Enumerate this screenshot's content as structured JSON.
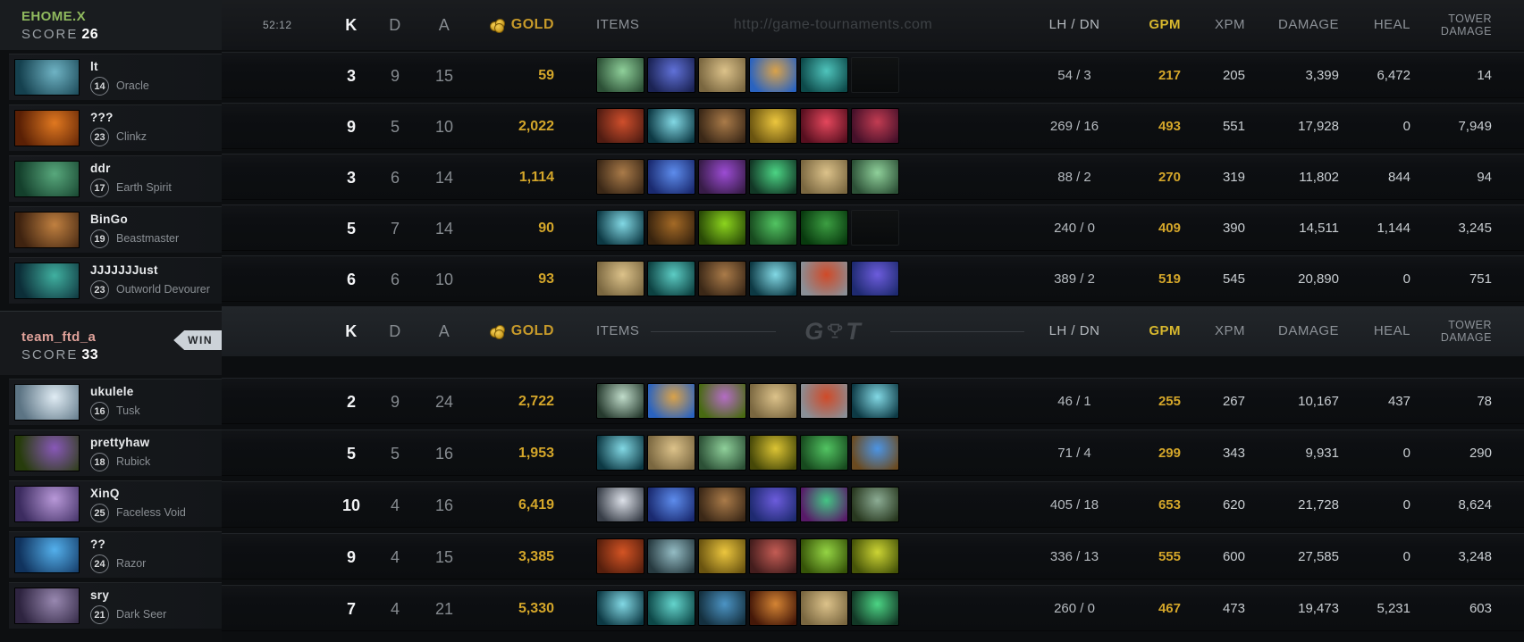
{
  "header": {
    "time": "52:12",
    "watermark": "http://game-tournaments.com",
    "columns": {
      "k": "K",
      "d": "D",
      "a": "A",
      "gold": "GOLD",
      "items": "ITEMS",
      "lh_dn": "LH / DN",
      "gpm": "GPM",
      "xpm": "XPM",
      "damage": "DAMAGE",
      "heal": "HEAL",
      "tower_line1": "TOWER",
      "tower_line2": "DAMAGE"
    },
    "gold_color": "#c79a2a",
    "gpm_color": "#d4a62a"
  },
  "teams": [
    {
      "name": "EHOME.X",
      "color": "#90ba5e",
      "score_label": "SCORE",
      "score": "26",
      "win": false,
      "players": [
        {
          "name": "lt",
          "level": "14",
          "hero": "Oracle",
          "portrait": [
            "#15414f",
            "#6fb3c4"
          ]
        },
        {
          "name": "???",
          "level": "23",
          "hero": "Clinkz",
          "portrait": [
            "#5a2005",
            "#e07820"
          ]
        },
        {
          "name": "ddr",
          "level": "17",
          "hero": "Earth Spirit",
          "portrait": [
            "#14402c",
            "#58a87c"
          ]
        },
        {
          "name": "BinGo",
          "level": "19",
          "hero": "Beastmaster",
          "portrait": [
            "#3f2310",
            "#c08040"
          ]
        },
        {
          "name": "JJJJJJJust",
          "level": "23",
          "hero": "Outworld Devourer",
          "portrait": [
            "#0c2e38",
            "#40b0a0"
          ]
        }
      ],
      "rows": [
        {
          "k": "3",
          "d": "9",
          "a": "15",
          "gold": "59",
          "lh": "54",
          "dn": "3",
          "gpm": "217",
          "xpm": "205",
          "damage": "3,399",
          "heal": "6,472",
          "tower": "14",
          "items": [
            [
              "oblivion-staff",
              "#2c5036",
              "#8fd09a"
            ],
            [
              "blue-cloak",
              "#1b2354",
              "#6071d8"
            ],
            [
              "tp-scroll",
              "#7a6740",
              "#dcc28a"
            ],
            [
              "blue-jar",
              "#2a63c0",
              "#d9a24a"
            ],
            [
              "teal-wave",
              "#0d4a4a",
              "#4fc4bc"
            ],
            null
          ]
        },
        {
          "k": "9",
          "d": "5",
          "a": "10",
          "gold": "2,022",
          "lh": "269",
          "dn": "16",
          "gpm": "493",
          "xpm": "551",
          "damage": "17,928",
          "heal": "0",
          "tower": "7,949",
          "items": [
            [
              "crossbow",
              "#511c12",
              "#cf4f2c"
            ],
            [
              "teal-blade",
              "#0d3944",
              "#82d8e4"
            ],
            [
              "boots",
              "#3b2817",
              "#aa7b49"
            ],
            [
              "gold-bird",
              "#6a5410",
              "#ecc63e"
            ],
            [
              "red-crystal",
              "#570f1f",
              "#e4475c"
            ],
            [
              "red-whip",
              "#451029",
              "#c23c52"
            ]
          ]
        },
        {
          "k": "3",
          "d": "6",
          "a": "14",
          "gold": "1,114",
          "lh": "88",
          "dn": "2",
          "gpm": "270",
          "xpm": "319",
          "damage": "11,802",
          "heal": "844",
          "tower": "94",
          "items": [
            [
              "boots",
              "#3b2817",
              "#aa7b49"
            ],
            [
              "blue-dagger",
              "#1a2a70",
              "#5d8cec"
            ],
            [
              "purple-hood",
              "#381c48",
              "#9c4cd4"
            ],
            [
              "green-gem",
              "#123826",
              "#4cd484"
            ],
            [
              "tp-scroll",
              "#7a6740",
              "#dcc28a"
            ],
            [
              "oblivion-staff",
              "#2c5036",
              "#8fd09a"
            ]
          ]
        },
        {
          "k": "5",
          "d": "7",
          "a": "14",
          "gold": "90",
          "lh": "240",
          "dn": "0",
          "gpm": "409",
          "xpm": "390",
          "damage": "14,511",
          "heal": "1,144",
          "tower": "3,245",
          "items": [
            [
              "teal-blade",
              "#0d3944",
              "#82d8e4"
            ],
            [
              "snake-trap",
              "#38230e",
              "#a46a26"
            ],
            [
              "green-vortex",
              "#294a06",
              "#8cd41e"
            ],
            [
              "green-boot",
              "#174a1e",
              "#52c462"
            ],
            [
              "green-hood",
              "#083a0e",
              "#3c9e42"
            ],
            null
          ]
        },
        {
          "k": "6",
          "d": "6",
          "a": "10",
          "gold": "93",
          "lh": "389",
          "dn": "2",
          "gpm": "519",
          "xpm": "545",
          "damage": "20,890",
          "heal": "0",
          "tower": "751",
          "items": [
            [
              "tp-scroll",
              "#7a6740",
              "#dcc28a"
            ],
            [
              "teal-skull",
              "#0d4242",
              "#5cccc4"
            ],
            [
              "boots",
              "#3b2817",
              "#aa7b49"
            ],
            [
              "teal-blade",
              "#0d3944",
              "#82d8e4"
            ],
            [
              "white-red-armor",
              "#8a8f96",
              "#d04a28"
            ],
            [
              "violet-orb",
              "#1e2a70",
              "#6c5cdc"
            ]
          ]
        }
      ]
    },
    {
      "name": "team_ftd_a",
      "color": "#e0a29a",
      "score_label": "SCORE",
      "score": "33",
      "win": true,
      "win_label": "WIN",
      "players": [
        {
          "name": "ukulele",
          "level": "16",
          "hero": "Tusk",
          "portrait": [
            "#5c7484",
            "#e0ecf4"
          ]
        },
        {
          "name": "prettyhaw",
          "level": "18",
          "hero": "Rubick",
          "portrait": [
            "#273c0c",
            "#8858b8"
          ]
        },
        {
          "name": "XinQ",
          "level": "25",
          "hero": "Faceless Void",
          "portrait": [
            "#3c2c60",
            "#b898d8"
          ]
        },
        {
          "name": "??",
          "level": "24",
          "hero": "Razor",
          "portrait": [
            "#10335e",
            "#54b0ec"
          ]
        },
        {
          "name": "sry",
          "level": "21",
          "hero": "Dark Seer",
          "portrait": [
            "#2e2440",
            "#9888b0"
          ]
        }
      ],
      "rows": [
        {
          "k": "2",
          "d": "9",
          "a": "24",
          "gold": "2,722",
          "lh": "46",
          "dn": "1",
          "gpm": "255",
          "xpm": "267",
          "damage": "10,167",
          "heal": "437",
          "tower": "78",
          "items": [
            [
              "pale-wand",
              "#263a2e",
              "#c0dcca"
            ],
            [
              "blue-jar",
              "#2a63c0",
              "#d9a24a"
            ],
            [
              "teapot",
              "#486a12",
              "#b46cc4"
            ],
            [
              "tp-scroll",
              "#7a6740",
              "#dcc28a"
            ],
            [
              "white-red-armor",
              "#8a8f96",
              "#d04a28"
            ],
            [
              "teal-blade",
              "#0d3944",
              "#82d8e4"
            ]
          ]
        },
        {
          "k": "5",
          "d": "5",
          "a": "16",
          "gold": "1,953",
          "lh": "71",
          "dn": "4",
          "gpm": "299",
          "xpm": "343",
          "damage": "9,931",
          "heal": "0",
          "tower": "290",
          "items": [
            [
              "teal-blade",
              "#0d3944",
              "#82d8e4"
            ],
            [
              "tp-scroll",
              "#7a6740",
              "#dcc28a"
            ],
            [
              "oblivion-staff",
              "#2c5036",
              "#8fd09a"
            ],
            [
              "gold-scepter",
              "#464808",
              "#dcc434"
            ],
            [
              "green-boot",
              "#174a1e",
              "#52c462"
            ],
            [
              "ring-orb",
              "#6a4a20",
              "#4c94e4"
            ]
          ]
        },
        {
          "k": "10",
          "d": "4",
          "a": "16",
          "gold": "6,419",
          "lh": "405",
          "dn": "18",
          "gpm": "653",
          "xpm": "620",
          "damage": "21,728",
          "heal": "0",
          "tower": "8,624",
          "items": [
            [
              "skull-axe",
              "#383e48",
              "#dce0e8"
            ],
            [
              "blue-dagger",
              "#1a2a70",
              "#5d8cec"
            ],
            [
              "boots",
              "#3b2817",
              "#aa7b49"
            ],
            [
              "violet-orb",
              "#1e2a70",
              "#6c5cdc"
            ],
            [
              "purple-green-blade",
              "#571a68",
              "#44c484"
            ],
            [
              "green-armor",
              "#28381f",
              "#8cac94"
            ]
          ]
        },
        {
          "k": "9",
          "d": "4",
          "a": "15",
          "gold": "3,385",
          "lh": "336",
          "dn": "13",
          "gpm": "555",
          "xpm": "600",
          "damage": "27,585",
          "heal": "0",
          "tower": "3,248",
          "items": [
            [
              "red-boot",
              "#571f0d",
              "#d45424"
            ],
            [
              "gray-mask",
              "#273a40",
              "#94bcc4"
            ],
            [
              "gold-bird",
              "#6a5410",
              "#ecc63e"
            ],
            [
              "red-spear",
              "#441d1d",
              "#c45c54"
            ],
            [
              "green-sword",
              "#365408",
              "#94d444"
            ],
            [
              "lime-scepter",
              "#465408",
              "#ccd434"
            ]
          ]
        },
        {
          "k": "7",
          "d": "4",
          "a": "21",
          "gold": "5,330",
          "lh": "260",
          "dn": "0",
          "gpm": "467",
          "xpm": "473",
          "damage": "19,473",
          "heal": "5,231",
          "tower": "603",
          "items": [
            [
              "teal-blade",
              "#0d3944",
              "#82d8e4"
            ],
            [
              "teal-hammer",
              "#0d4848",
              "#64d4cc"
            ],
            [
              "blue-boots",
              "#14303f",
              "#4c94c4"
            ],
            [
              "red-helm",
              "#451808",
              "#d48434"
            ],
            [
              "tp-scroll",
              "#7a6740",
              "#dcc28a"
            ],
            [
              "green-gem",
              "#123826",
              "#4cd484"
            ]
          ]
        }
      ]
    }
  ]
}
